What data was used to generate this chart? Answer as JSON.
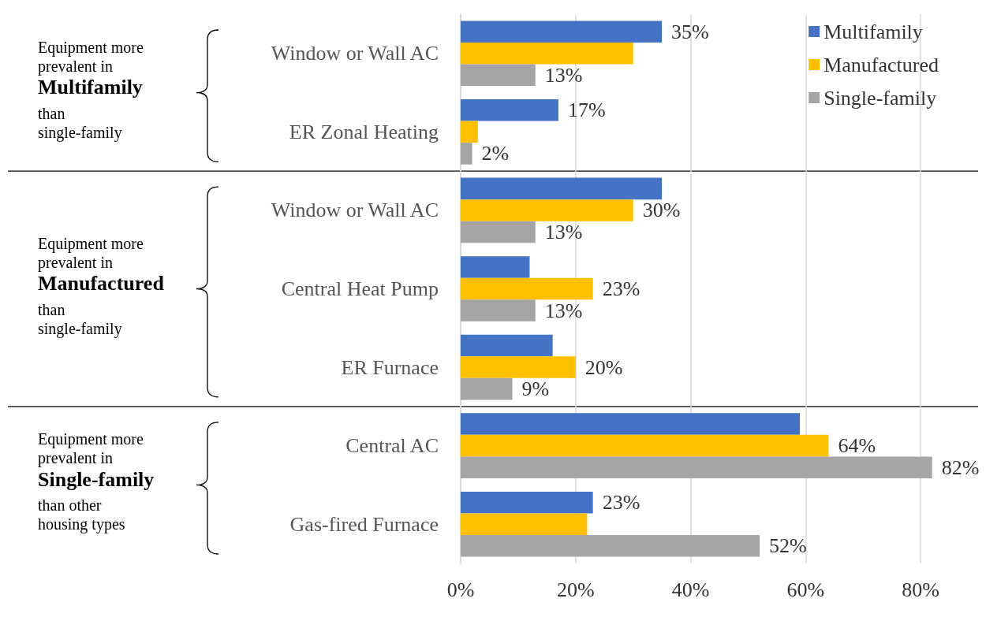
{
  "chart_data": {
    "type": "bar",
    "orientation": "horizontal",
    "categories": [
      "Window or Wall AC",
      "ER Zonal Heating",
      "Window or Wall AC",
      "Central Heat Pump",
      "ER Furnace",
      "Central AC",
      "Gas-fired Furnace"
    ],
    "series": [
      {
        "name": "Multifamily",
        "color": "#4472c4",
        "values": [
          35,
          17,
          35,
          12,
          16,
          59,
          23
        ],
        "value_labels": [
          "35%",
          "17%",
          null,
          null,
          null,
          null,
          "23%"
        ]
      },
      {
        "name": "Manufactured",
        "color": "#ffc000",
        "values": [
          30,
          3,
          30,
          23,
          20,
          64,
          22
        ],
        "value_labels": [
          null,
          null,
          "30%",
          "23%",
          "20%",
          "64%",
          null
        ]
      },
      {
        "name": "Single-family",
        "color": "#a5a5a5",
        "values": [
          13,
          2,
          13,
          13,
          9,
          82,
          52
        ],
        "value_labels": [
          "13%",
          "2%",
          "13%",
          "13%",
          "9%",
          "82%",
          "52%"
        ]
      }
    ],
    "xlim": [
      0,
      90
    ],
    "xticks": [
      {
        "value": 0,
        "label": "0%"
      },
      {
        "value": 20,
        "label": "20%"
      },
      {
        "value": 40,
        "label": "40%"
      },
      {
        "value": 60,
        "label": "60%"
      },
      {
        "value": 80,
        "label": "80%"
      }
    ],
    "grid": "x",
    "legend": "top right",
    "annotations": [
      "Equipment more prevalent in",
      "Multifamily",
      "than single-family",
      "Equipment more prevalent in",
      "Manufactured",
      "than single-family",
      "Equipment more prevalent in",
      "Single-family",
      "than other housing types"
    ]
  }
}
